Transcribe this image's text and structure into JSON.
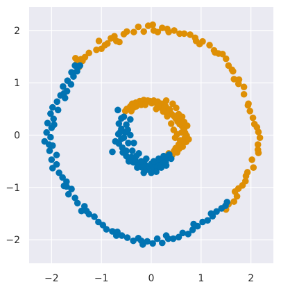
{
  "chart_data": {
    "type": "scatter",
    "title": "",
    "xlabel": "",
    "ylabel": "",
    "xlim": [
      -2.45,
      2.45
    ],
    "ylim": [
      -2.45,
      2.45
    ],
    "grid": true,
    "colors": {
      "background": "#eaeaf2",
      "grid": "#ffffff",
      "blue": "#0173b2",
      "orange": "#de8f05"
    },
    "x_ticks": [
      -2,
      -1,
      0,
      1,
      2
    ],
    "y_ticks": [
      -2,
      -1,
      0,
      1,
      2
    ],
    "x_tick_labels": [
      "−2",
      "−1",
      "0",
      "1",
      "2"
    ],
    "y_tick_labels": [
      "−2",
      "−1",
      "0",
      "1",
      "2"
    ],
    "series": [
      {
        "color": "#de8f05",
        "points": [
          [
            -1.51,
            1.35
          ],
          [
            -1.52,
            1.47
          ],
          [
            -1.45,
            1.3
          ],
          [
            -1.41,
            1.45
          ],
          [
            -1.33,
            1.49
          ],
          [
            -1.25,
            1.57
          ],
          [
            -1.1,
            1.63
          ],
          [
            -1.05,
            1.8
          ],
          [
            -1.0,
            1.65
          ],
          [
            -0.93,
            1.72
          ],
          [
            -0.88,
            1.75
          ],
          [
            -0.74,
            1.89
          ],
          [
            -0.64,
            1.78
          ],
          [
            -0.55,
            1.93
          ],
          [
            -0.49,
            1.98
          ],
          [
            -0.35,
            1.97
          ],
          [
            -0.26,
            2.07
          ],
          [
            -0.15,
            1.98
          ],
          [
            -0.06,
            2.09
          ],
          [
            0.03,
            2.11
          ],
          [
            0.13,
            1.97
          ],
          [
            0.22,
            2.05
          ],
          [
            0.35,
            1.97
          ],
          [
            0.46,
            2.0
          ],
          [
            0.57,
            1.94
          ],
          [
            0.66,
            1.94
          ],
          [
            0.78,
            1.92
          ],
          [
            0.88,
            1.86
          ],
          [
            0.97,
            1.74
          ],
          [
            1.03,
            1.79
          ],
          [
            1.17,
            1.72
          ],
          [
            1.26,
            1.62
          ],
          [
            1.35,
            1.56
          ],
          [
            1.43,
            1.55
          ],
          [
            1.5,
            1.46
          ],
          [
            1.55,
            1.33
          ],
          [
            1.64,
            1.22
          ],
          [
            1.66,
            1.07
          ],
          [
            1.76,
            1.06
          ],
          [
            1.86,
            0.92
          ],
          [
            1.86,
            0.78
          ],
          [
            1.94,
            0.57
          ],
          [
            1.98,
            0.46
          ],
          [
            2.04,
            0.33
          ],
          [
            2.07,
            0.21
          ],
          [
            2.15,
            0.06
          ],
          [
            2.18,
            -0.05
          ],
          [
            2.14,
            -0.18
          ],
          [
            2.15,
            -0.34
          ],
          [
            2.02,
            -0.47
          ],
          [
            2.05,
            -0.62
          ],
          [
            1.93,
            -0.71
          ],
          [
            1.89,
            -0.88
          ],
          [
            1.83,
            -0.96
          ],
          [
            1.75,
            -1.02
          ],
          [
            1.68,
            -1.08
          ],
          [
            1.72,
            -1.17
          ],
          [
            1.66,
            -1.27
          ],
          [
            1.55,
            -1.32
          ],
          [
            1.5,
            -1.42
          ],
          [
            -1.38,
            1.42
          ],
          [
            -1.46,
            1.38
          ],
          [
            -0.81,
            1.85
          ],
          [
            -0.7,
            1.8
          ],
          [
            0.05,
            2.0
          ],
          [
            0.32,
            2.03
          ],
          [
            0.9,
            1.8
          ],
          [
            1.28,
            1.58
          ],
          [
            1.62,
            1.25
          ],
          [
            1.75,
            0.98
          ],
          [
            1.95,
            0.6
          ],
          [
            2.12,
            0.15
          ],
          [
            2.14,
            -0.28
          ],
          [
            1.9,
            -0.78
          ],
          [
            -0.52,
            0.46
          ],
          [
            -0.49,
            0.5
          ],
          [
            -0.45,
            0.5
          ],
          [
            -0.42,
            0.55
          ],
          [
            -0.38,
            0.6
          ],
          [
            -0.35,
            0.53
          ],
          [
            -0.31,
            0.62
          ],
          [
            -0.27,
            0.6
          ],
          [
            -0.23,
            0.65
          ],
          [
            -0.19,
            0.63
          ],
          [
            -0.15,
            0.67
          ],
          [
            -0.11,
            0.63
          ],
          [
            -0.07,
            0.66
          ],
          [
            -0.03,
            0.65
          ],
          [
            0.01,
            0.61
          ],
          [
            0.05,
            0.66
          ],
          [
            0.09,
            0.62
          ],
          [
            0.13,
            0.64
          ],
          [
            0.17,
            0.57
          ],
          [
            0.21,
            0.6
          ],
          [
            0.25,
            0.52
          ],
          [
            0.29,
            0.55
          ],
          [
            0.33,
            0.47
          ],
          [
            0.37,
            0.49
          ],
          [
            0.41,
            0.4
          ],
          [
            0.45,
            0.37
          ],
          [
            0.49,
            0.32
          ],
          [
            0.53,
            0.26
          ],
          [
            0.57,
            0.21
          ],
          [
            0.62,
            0.17
          ],
          [
            0.66,
            0.12
          ],
          [
            0.68,
            0.04
          ],
          [
            0.71,
            -0.01
          ],
          [
            0.67,
            -0.06
          ],
          [
            0.7,
            -0.13
          ],
          [
            0.64,
            -0.15
          ],
          [
            0.63,
            -0.22
          ],
          [
            0.56,
            -0.26
          ],
          [
            0.52,
            -0.33
          ],
          [
            0.46,
            -0.3
          ],
          [
            0.42,
            -0.38
          ],
          [
            0.38,
            -0.41
          ],
          [
            0.43,
            0.6
          ],
          [
            0.5,
            0.52
          ],
          [
            0.58,
            0.28
          ],
          [
            0.61,
            0.05
          ],
          [
            0.58,
            -0.1
          ],
          [
            0.55,
            -0.18
          ],
          [
            0.49,
            -0.25
          ],
          [
            0.3,
            0.43
          ],
          [
            0.2,
            0.52
          ],
          [
            0.1,
            0.5
          ],
          [
            -0.2,
            0.58
          ],
          [
            -0.3,
            0.55
          ],
          [
            0.45,
            0.1
          ],
          [
            0.52,
            0.02
          ],
          [
            0.4,
            0.22
          ],
          [
            0.48,
            -0.05
          ],
          [
            0.35,
            -0.35
          ],
          [
            0.62,
            0.35
          ],
          [
            0.32,
            0.36
          ],
          [
            0.55,
            0.4
          ],
          [
            0.24,
            0.45
          ],
          [
            0.66,
            0.25
          ],
          [
            0.3,
            0.66
          ],
          [
            -0.4,
            0.46
          ],
          [
            0.75,
            -0.08
          ],
          [
            0.72,
            0.18
          ],
          [
            -0.12,
            0.58
          ],
          [
            0.14,
            0.55
          ]
        ]
      },
      {
        "color": "#0173b2",
        "points": [
          [
            -1.46,
            1.31
          ],
          [
            -1.53,
            1.33
          ],
          [
            -1.49,
            1.22
          ],
          [
            -1.6,
            1.2
          ],
          [
            -1.56,
            1.12
          ],
          [
            -1.68,
            1.04
          ],
          [
            -1.61,
            0.97
          ],
          [
            -1.77,
            0.93
          ],
          [
            -1.69,
            0.84
          ],
          [
            -1.82,
            0.76
          ],
          [
            -1.73,
            0.71
          ],
          [
            -1.89,
            0.64
          ],
          [
            -1.98,
            0.53
          ],
          [
            -1.87,
            0.48
          ],
          [
            -2.02,
            0.41
          ],
          [
            -1.96,
            0.31
          ],
          [
            -2.08,
            0.23
          ],
          [
            -2.0,
            0.14
          ],
          [
            -2.1,
            0.05
          ],
          [
            -2.02,
            -0.04
          ],
          [
            -2.14,
            -0.12
          ],
          [
            -1.98,
            -0.2
          ],
          [
            -2.04,
            -0.3
          ],
          [
            -1.9,
            -0.38
          ],
          [
            -2.0,
            -0.47
          ],
          [
            -1.9,
            -0.56
          ],
          [
            -1.98,
            -0.63
          ],
          [
            -1.85,
            -0.72
          ],
          [
            -1.78,
            -0.81
          ],
          [
            -1.7,
            -0.89
          ],
          [
            -1.75,
            -0.97
          ],
          [
            -1.6,
            -1.03
          ],
          [
            -1.66,
            -1.13
          ],
          [
            -1.53,
            -1.2
          ],
          [
            -1.48,
            -1.3
          ],
          [
            -1.34,
            -1.36
          ],
          [
            -1.4,
            -1.45
          ],
          [
            -1.25,
            -1.51
          ],
          [
            -1.14,
            -1.56
          ],
          [
            -1.06,
            -1.66
          ],
          [
            -0.97,
            -1.72
          ],
          [
            -0.9,
            -1.8
          ],
          [
            -0.78,
            -1.84
          ],
          [
            -0.68,
            -1.85
          ],
          [
            -0.59,
            -1.92
          ],
          [
            -0.48,
            -1.96
          ],
          [
            -0.36,
            -2.02
          ],
          [
            -0.26,
            -1.97
          ],
          [
            -0.17,
            -2.09
          ],
          [
            -0.08,
            -2.03
          ],
          [
            0.03,
            -2.07
          ],
          [
            0.12,
            -1.98
          ],
          [
            0.22,
            -2.06
          ],
          [
            0.34,
            -1.98
          ],
          [
            0.44,
            -1.98
          ],
          [
            0.55,
            -1.95
          ],
          [
            0.63,
            -1.87
          ],
          [
            0.74,
            -1.89
          ],
          [
            0.83,
            -1.81
          ],
          [
            0.93,
            -1.74
          ],
          [
            1.03,
            -1.66
          ],
          [
            1.13,
            -1.63
          ],
          [
            1.23,
            -1.55
          ],
          [
            1.31,
            -1.46
          ],
          [
            1.41,
            -1.4
          ],
          [
            1.49,
            -1.35
          ],
          [
            -1.43,
            1.33
          ],
          [
            -1.75,
            0.8
          ],
          [
            -1.95,
            0.2
          ],
          [
            -2.05,
            -0.18
          ],
          [
            -1.7,
            -0.98
          ],
          [
            -1.3,
            -1.45
          ],
          [
            -0.7,
            -1.92
          ],
          [
            -0.2,
            -2.02
          ],
          [
            0.3,
            -1.92
          ],
          [
            0.85,
            -1.7
          ],
          [
            1.2,
            -1.5
          ],
          [
            1.52,
            -1.28
          ],
          [
            -0.67,
            0.48
          ],
          [
            -0.6,
            0.32
          ],
          [
            -0.65,
            0.22
          ],
          [
            -0.6,
            0.12
          ],
          [
            -0.66,
            0.02
          ],
          [
            -0.6,
            -0.07
          ],
          [
            -0.65,
            -0.16
          ],
          [
            -0.58,
            -0.24
          ],
          [
            -0.57,
            -0.33
          ],
          [
            -0.5,
            -0.4
          ],
          [
            -0.45,
            -0.47
          ],
          [
            -0.4,
            -0.42
          ],
          [
            -0.36,
            -0.52
          ],
          [
            -0.31,
            -0.5
          ],
          [
            -0.27,
            -0.58
          ],
          [
            -0.22,
            -0.55
          ],
          [
            -0.18,
            -0.62
          ],
          [
            -0.13,
            -0.56
          ],
          [
            -0.09,
            -0.66
          ],
          [
            -0.04,
            -0.6
          ],
          [
            0.0,
            -0.55
          ],
          [
            0.04,
            -0.63
          ],
          [
            0.08,
            -0.57
          ],
          [
            0.13,
            -0.61
          ],
          [
            0.17,
            -0.53
          ],
          [
            0.21,
            -0.55
          ],
          [
            0.25,
            -0.48
          ],
          [
            0.29,
            -0.52
          ],
          [
            0.33,
            -0.44
          ],
          [
            0.36,
            -0.37
          ],
          [
            0.4,
            -0.45
          ],
          [
            -0.5,
            0.2
          ],
          [
            -0.52,
            0.05
          ],
          [
            -0.42,
            0.3
          ],
          [
            -0.46,
            -0.15
          ],
          [
            -0.38,
            -0.3
          ],
          [
            -0.3,
            -0.4
          ],
          [
            -0.2,
            -0.5
          ],
          [
            -0.1,
            -0.45
          ],
          [
            0.05,
            -0.5
          ],
          [
            0.15,
            -0.45
          ],
          [
            0.25,
            -0.4
          ],
          [
            -0.55,
            0.35
          ],
          [
            -0.72,
            -0.12
          ],
          [
            -0.5,
            -0.3
          ],
          [
            -0.28,
            -0.62
          ],
          [
            0.1,
            -0.7
          ],
          [
            0.3,
            -0.58
          ],
          [
            -0.47,
            0.1
          ],
          [
            -0.42,
            0.0
          ],
          [
            -0.55,
            -0.05
          ],
          [
            -0.35,
            -0.15
          ],
          [
            -0.62,
            0.06
          ],
          [
            -0.25,
            -0.35
          ],
          [
            0.0,
            -0.72
          ],
          [
            0.2,
            -0.62
          ],
          [
            -0.45,
            -0.5
          ],
          [
            -0.15,
            -0.72
          ],
          [
            -0.78,
            -0.32
          ]
        ]
      }
    ]
  }
}
